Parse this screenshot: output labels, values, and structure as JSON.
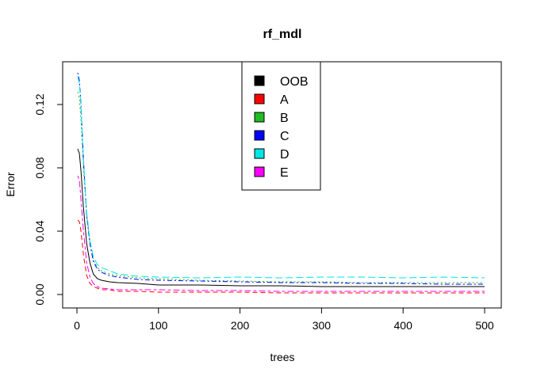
{
  "chart_data": {
    "type": "line",
    "title": "rf_mdl",
    "xlabel": "trees",
    "ylabel": "Error",
    "xlim": [
      0,
      500
    ],
    "ylim": [
      0,
      0.14
    ],
    "x_ticks": [
      0,
      100,
      200,
      300,
      400,
      500
    ],
    "x_tick_labels": [
      "0",
      "100",
      "200",
      "300",
      "400",
      "500"
    ],
    "y_ticks": [
      0.0,
      0.04,
      0.08,
      0.12
    ],
    "y_tick_labels": [
      "0.00",
      "0.04",
      "0.08",
      "0.12"
    ],
    "grid": false,
    "legend_position": "top-center",
    "series": [
      {
        "name": "OOB",
        "color": "#000000",
        "dash": "solid",
        "x": [
          1,
          3,
          5,
          8,
          12,
          16,
          20,
          25,
          30,
          40,
          50,
          75,
          100,
          150,
          200,
          250,
          300,
          350,
          400,
          450,
          500
        ],
        "y": [
          0.092,
          0.089,
          0.078,
          0.055,
          0.032,
          0.02,
          0.013,
          0.01,
          0.009,
          0.008,
          0.0075,
          0.007,
          0.006,
          0.006,
          0.0055,
          0.0055,
          0.005,
          0.005,
          0.005,
          0.005,
          0.005
        ]
      },
      {
        "name": "A",
        "color": "#ff0000",
        "dash": "dashed",
        "x": [
          1,
          3,
          5,
          8,
          12,
          16,
          20,
          25,
          30,
          40,
          50,
          75,
          100,
          150,
          200,
          250,
          300,
          350,
          400,
          450,
          500
        ],
        "y": [
          0.047,
          0.046,
          0.04,
          0.025,
          0.012,
          0.007,
          0.005,
          0.004,
          0.003,
          0.003,
          0.002,
          0.002,
          0.0015,
          0.0015,
          0.0015,
          0.001,
          0.001,
          0.001,
          0.001,
          0.001,
          0.001
        ]
      },
      {
        "name": "B",
        "color": "#22bb22",
        "dash": "dotted",
        "x": [
          1,
          3,
          5,
          8,
          12,
          16,
          20,
          25,
          30,
          40,
          50,
          75,
          100,
          150,
          200,
          250,
          300,
          350,
          400,
          450,
          500
        ],
        "y": [
          0.128,
          0.124,
          0.11,
          0.08,
          0.05,
          0.033,
          0.022,
          0.017,
          0.015,
          0.013,
          0.012,
          0.0105,
          0.01,
          0.009,
          0.0085,
          0.008,
          0.008,
          0.0075,
          0.0075,
          0.0075,
          0.0075
        ]
      },
      {
        "name": "C",
        "color": "#0000ff",
        "dash": "dotdash",
        "x": [
          1,
          3,
          5,
          8,
          12,
          16,
          20,
          25,
          30,
          40,
          50,
          75,
          100,
          150,
          200,
          250,
          300,
          350,
          400,
          450,
          500
        ],
        "y": [
          0.14,
          0.135,
          0.12,
          0.085,
          0.05,
          0.032,
          0.021,
          0.016,
          0.014,
          0.012,
          0.011,
          0.0095,
          0.009,
          0.0085,
          0.008,
          0.0075,
          0.0075,
          0.007,
          0.007,
          0.0065,
          0.0065
        ]
      },
      {
        "name": "D",
        "color": "#00e5e5",
        "dash": "longdash",
        "x": [
          1,
          3,
          5,
          8,
          12,
          16,
          20,
          25,
          30,
          40,
          50,
          75,
          100,
          150,
          200,
          250,
          300,
          350,
          400,
          450,
          500
        ],
        "y": [
          0.138,
          0.133,
          0.118,
          0.085,
          0.052,
          0.034,
          0.024,
          0.019,
          0.017,
          0.015,
          0.013,
          0.0115,
          0.011,
          0.0105,
          0.011,
          0.0105,
          0.011,
          0.011,
          0.0105,
          0.011,
          0.0105
        ]
      },
      {
        "name": "E",
        "color": "#ff00ff",
        "dash": "twodash",
        "x": [
          1,
          3,
          5,
          8,
          12,
          16,
          20,
          25,
          30,
          40,
          50,
          75,
          100,
          150,
          200,
          250,
          300,
          350,
          400,
          450,
          500
        ],
        "y": [
          0.075,
          0.072,
          0.06,
          0.04,
          0.02,
          0.011,
          0.007,
          0.005,
          0.004,
          0.0035,
          0.003,
          0.003,
          0.003,
          0.0025,
          0.0025,
          0.002,
          0.002,
          0.002,
          0.002,
          0.002,
          0.002
        ]
      }
    ]
  }
}
